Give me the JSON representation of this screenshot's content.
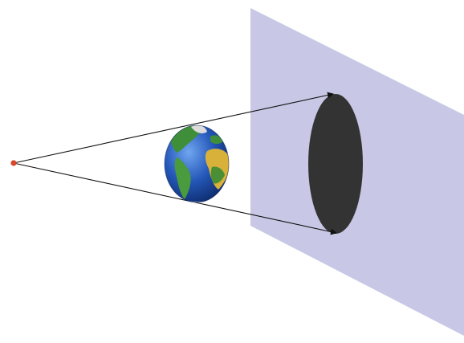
{
  "diagram": {
    "kind": "shadow-projection",
    "elements": [
      {
        "id": "point-source",
        "shape": "dot",
        "color": "#d9472b"
      },
      {
        "id": "globe",
        "shape": "sphere",
        "colors": {
          "ocean": "#1f4fb0",
          "land": "#3f8f3a",
          "desert": "#d8b13a"
        }
      },
      {
        "id": "screen",
        "shape": "plane",
        "color": "#c8c8e6"
      },
      {
        "id": "shadow",
        "shape": "ellipse",
        "color": "#333333"
      }
    ],
    "rays": [
      {
        "from": "point-source",
        "to": "shadow-top"
      },
      {
        "from": "point-source",
        "to": "shadow-bottom"
      }
    ]
  }
}
